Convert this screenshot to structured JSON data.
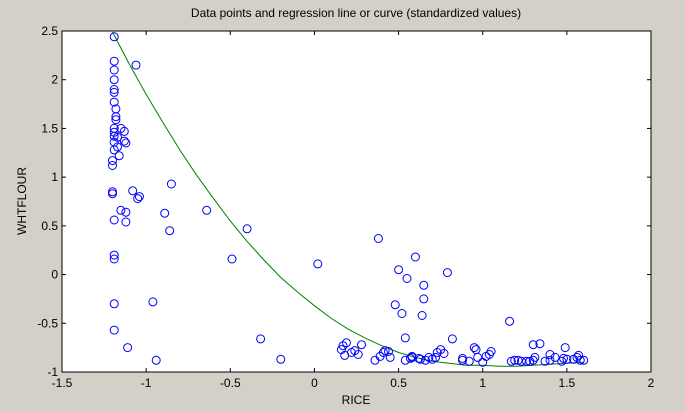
{
  "chart_data": {
    "type": "scatter",
    "title": "Data points and regression line or curve (standardized values)",
    "xlabel": "RICE",
    "ylabel": "WHTFLOUR",
    "xlim": [
      -1.5,
      2
    ],
    "ylim": [
      -1,
      2.5
    ],
    "xticks": [
      "-1.5",
      "-1",
      "-0.5",
      "0",
      "0.5",
      "1",
      "1.5",
      "2"
    ],
    "yticks": [
      "-1",
      "-0.5",
      "0",
      "0.5",
      "1",
      "1.5",
      "2",
      "2.5"
    ],
    "grid": false,
    "marker_color": "#0000ff",
    "curve_color": "#008000",
    "background_color": "#d4d0c8",
    "plot_background_color": "#ffffff",
    "series": [
      {
        "kind": "points",
        "marker": "circle",
        "x": [
          -1.19,
          -1.19,
          -1.19,
          -1.19,
          -1.19,
          -1.19,
          -1.19,
          -1.18,
          -1.18,
          -1.18,
          -1.17,
          -1.19,
          -1.19,
          -1.19,
          -1.17,
          -1.19,
          -1.16,
          -1.15,
          -1.13,
          -1.12,
          -1.13,
          -1.19,
          -1.2,
          -1.2,
          -1.2,
          -1.2,
          -1.19,
          -1.15,
          -1.12,
          -1.12,
          -1.08,
          -1.06,
          -1.19,
          -1.19,
          -1.19,
          -1.19,
          -1.11,
          -0.96,
          -0.94,
          -1.04,
          -1.05,
          -0.89,
          -0.86,
          -0.85,
          -0.64,
          -0.49,
          -0.4,
          -0.32,
          -0.2,
          0.02,
          0.16,
          0.17,
          0.18,
          0.19,
          0.22,
          0.24,
          0.26,
          0.28,
          0.36,
          0.38,
          0.39,
          0.41,
          0.42,
          0.44,
          0.45,
          0.48,
          0.5,
          0.52,
          0.54,
          0.54,
          0.55,
          0.57,
          0.58,
          0.58,
          0.6,
          0.62,
          0.63,
          0.64,
          0.65,
          0.65,
          0.66,
          0.68,
          0.7,
          0.72,
          0.73,
          0.75,
          0.77,
          0.79,
          0.82,
          0.88,
          0.88,
          0.92,
          0.95,
          0.96,
          0.97,
          1.0,
          1.02,
          1.04,
          1.05,
          1.16,
          1.17,
          1.19,
          1.21,
          1.23,
          1.26,
          1.28,
          1.3,
          1.3,
          1.31,
          1.34,
          1.37,
          1.4,
          1.4,
          1.43,
          1.47,
          1.48,
          1.49,
          1.5,
          1.54,
          1.56,
          1.57,
          1.58,
          1.6
        ],
        "y": [
          2.44,
          2.19,
          2.1,
          2.0,
          1.9,
          1.87,
          1.77,
          1.7,
          1.62,
          1.59,
          1.31,
          1.5,
          1.46,
          1.42,
          1.41,
          1.36,
          1.22,
          1.5,
          1.47,
          1.35,
          1.37,
          1.28,
          1.17,
          1.12,
          0.85,
          0.83,
          0.56,
          0.66,
          0.64,
          0.54,
          0.86,
          2.15,
          0.2,
          0.16,
          -0.3,
          -0.57,
          -0.75,
          -0.28,
          -0.88,
          0.8,
          0.78,
          0.63,
          0.45,
          0.93,
          0.66,
          0.16,
          0.47,
          -0.66,
          -0.87,
          0.11,
          -0.77,
          -0.73,
          -0.83,
          -0.7,
          -0.8,
          -0.78,
          -0.82,
          -0.72,
          -0.88,
          0.37,
          -0.84,
          -0.8,
          -0.78,
          -0.79,
          -0.85,
          -0.31,
          0.05,
          -0.4,
          -0.65,
          -0.88,
          -0.04,
          -0.86,
          -0.85,
          -0.84,
          0.18,
          -0.86,
          -0.87,
          -0.42,
          -0.11,
          -0.25,
          -0.88,
          -0.85,
          -0.87,
          -0.85,
          -0.8,
          -0.77,
          -0.81,
          0.02,
          -0.66,
          -0.86,
          -0.88,
          -0.89,
          -0.75,
          -0.77,
          -0.85,
          -0.9,
          -0.84,
          -0.82,
          -0.79,
          -0.48,
          -0.89,
          -0.88,
          -0.88,
          -0.89,
          -0.89,
          -0.89,
          -0.72,
          -0.88,
          -0.85,
          -0.71,
          -0.89,
          -0.88,
          -0.82,
          -0.85,
          -0.89,
          -0.86,
          -0.75,
          -0.87,
          -0.87,
          -0.85,
          -0.83,
          -0.88,
          -0.88
        ]
      },
      {
        "kind": "regression-curve",
        "x": [
          -1.2,
          -1.1,
          -1.0,
          -0.9,
          -0.8,
          -0.7,
          -0.6,
          -0.5,
          -0.4,
          -0.3,
          -0.2,
          -0.1,
          0.0,
          0.1,
          0.2,
          0.3,
          0.4,
          0.5,
          0.6,
          0.7,
          0.8,
          0.9,
          1.0,
          1.1,
          1.2,
          1.3,
          1.4,
          1.5,
          1.6
        ],
        "y": [
          2.49,
          2.16,
          1.85,
          1.56,
          1.28,
          1.02,
          0.78,
          0.55,
          0.34,
          0.15,
          -0.03,
          -0.18,
          -0.32,
          -0.45,
          -0.56,
          -0.65,
          -0.73,
          -0.8,
          -0.85,
          -0.89,
          -0.91,
          -0.93,
          -0.93,
          -0.94,
          -0.94,
          -0.93,
          -0.92,
          -0.91,
          -0.9
        ]
      }
    ]
  }
}
